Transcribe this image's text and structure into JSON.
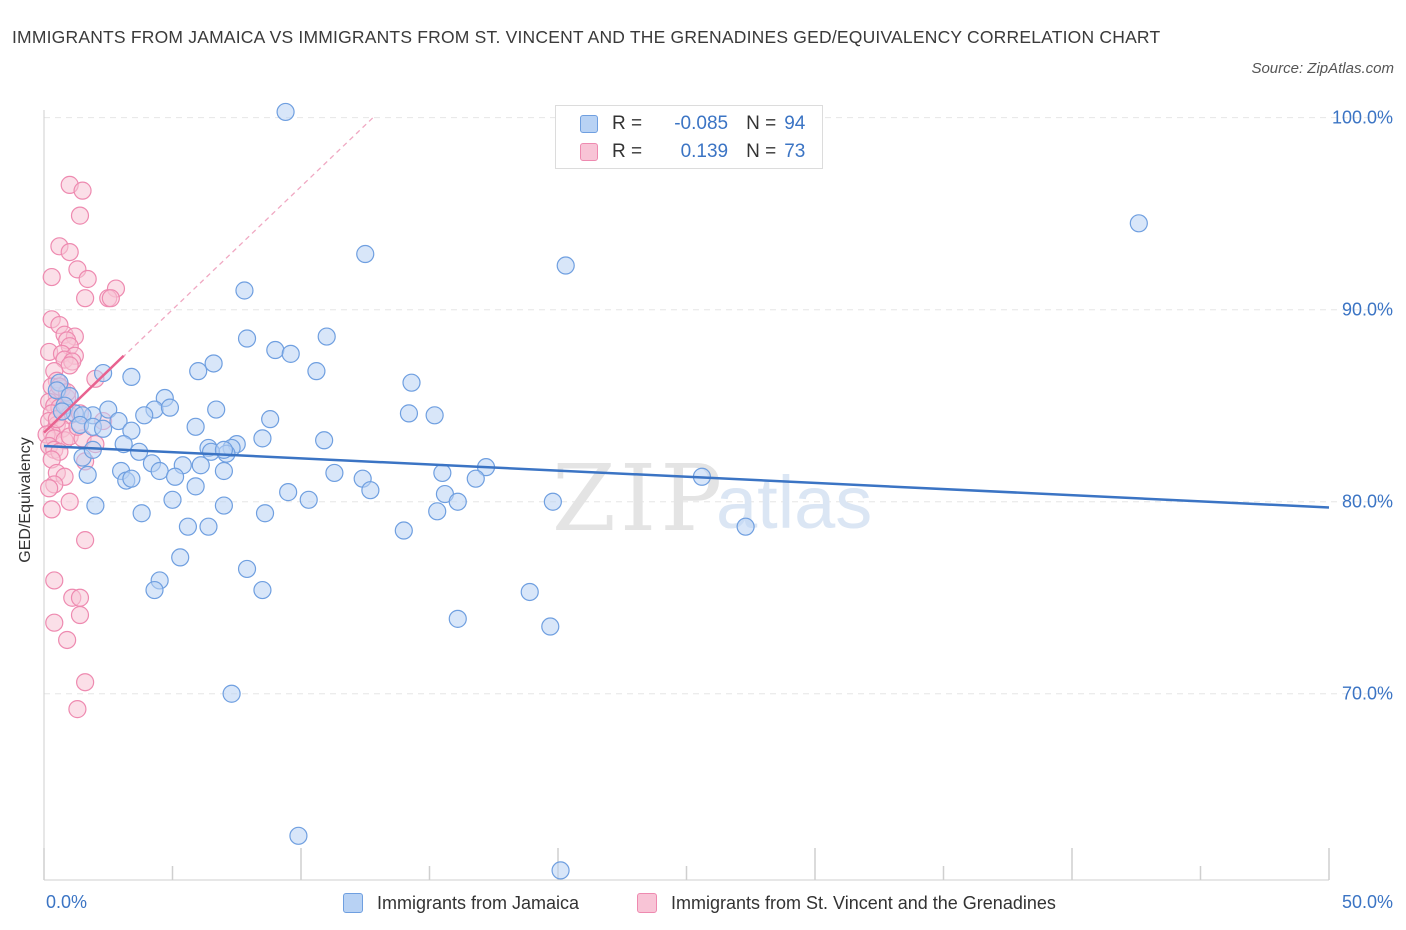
{
  "title": "IMMIGRANTS FROM JAMAICA VS IMMIGRANTS FROM ST. VINCENT AND THE GRENADINES GED/EQUIVALENCY CORRELATION CHART",
  "source": "Source: ZipAtlas.com",
  "watermark": {
    "zip": "ZIP",
    "atlas": "atlas"
  },
  "legend_stats": [
    {
      "r_label": "R =",
      "r_value": "-0.085",
      "n_label": "N =",
      "n_value": "94",
      "fill": "#b8d2f4",
      "stroke": "#6f9fe0"
    },
    {
      "r_label": "R =",
      "r_value": "0.139",
      "n_label": "N =",
      "n_value": "73",
      "fill": "#f8c4d6",
      "stroke": "#ee8ab0"
    }
  ],
  "colors": {
    "blue": "#3b74c4",
    "pink": "#e8628f"
  },
  "chart_data": {
    "type": "scatter",
    "title": "IMMIGRANTS FROM JAMAICA VS IMMIGRANTS FROM ST. VINCENT AND THE GRENADINES GED/EQUIVALENCY CORRELATION CHART",
    "xlabel": "",
    "ylabel": "GED/Equivalency",
    "xlim": [
      0,
      50
    ],
    "ylim": [
      60.3,
      100.4
    ],
    "x_tick_labels": [
      "0.0%",
      "50.0%"
    ],
    "y_ticks": [
      70,
      80,
      90,
      100
    ],
    "y_tick_labels": [
      "70.0%",
      "80.0%",
      "90.0%",
      "100.0%"
    ],
    "grid": true,
    "legend_position": "bottom",
    "series": [
      {
        "name": "Immigrants from Jamaica",
        "color": "#6f9fe0",
        "trend": {
          "x": [
            0,
            50
          ],
          "y": [
            82.9,
            79.7
          ]
        },
        "points": [
          [
            9.4,
            100.3
          ],
          [
            42.6,
            94.5
          ],
          [
            12.5,
            92.9
          ],
          [
            20.3,
            92.3
          ],
          [
            7.8,
            91.0
          ],
          [
            7.9,
            88.5
          ],
          [
            11.0,
            88.6
          ],
          [
            9.0,
            87.9
          ],
          [
            9.6,
            87.7
          ],
          [
            6.6,
            87.2
          ],
          [
            6.0,
            86.8
          ],
          [
            10.6,
            86.8
          ],
          [
            3.4,
            86.5
          ],
          [
            2.3,
            86.7
          ],
          [
            14.3,
            86.2
          ],
          [
            0.6,
            86.2
          ],
          [
            0.5,
            85.8
          ],
          [
            1.0,
            85.5
          ],
          [
            4.7,
            85.4
          ],
          [
            0.8,
            85.0
          ],
          [
            1.2,
            84.6
          ],
          [
            1.9,
            84.5
          ],
          [
            1.5,
            84.5
          ],
          [
            2.5,
            84.8
          ],
          [
            4.3,
            84.8
          ],
          [
            4.9,
            84.9
          ],
          [
            6.7,
            84.8
          ],
          [
            14.2,
            84.6
          ],
          [
            15.2,
            84.5
          ],
          [
            8.8,
            84.3
          ],
          [
            3.9,
            84.5
          ],
          [
            2.9,
            84.2
          ],
          [
            1.4,
            84.0
          ],
          [
            1.9,
            83.9
          ],
          [
            2.3,
            83.8
          ],
          [
            3.4,
            83.7
          ],
          [
            5.9,
            83.9
          ],
          [
            8.5,
            83.3
          ],
          [
            10.9,
            83.2
          ],
          [
            7.5,
            83.0
          ],
          [
            7.3,
            82.8
          ],
          [
            7.1,
            82.5
          ],
          [
            6.4,
            82.8
          ],
          [
            3.1,
            83.0
          ],
          [
            3.7,
            82.6
          ],
          [
            1.5,
            82.3
          ],
          [
            1.9,
            82.7
          ],
          [
            4.2,
            82.0
          ],
          [
            5.4,
            81.9
          ],
          [
            4.5,
            81.6
          ],
          [
            3.0,
            81.6
          ],
          [
            3.2,
            81.1
          ],
          [
            3.4,
            81.2
          ],
          [
            6.1,
            81.9
          ],
          [
            7.0,
            81.6
          ],
          [
            11.3,
            81.5
          ],
          [
            17.2,
            81.8
          ],
          [
            16.8,
            81.2
          ],
          [
            12.4,
            81.2
          ],
          [
            25.6,
            81.3
          ],
          [
            12.7,
            80.6
          ],
          [
            9.5,
            80.5
          ],
          [
            10.3,
            80.1
          ],
          [
            15.6,
            80.4
          ],
          [
            16.1,
            80.0
          ],
          [
            19.8,
            80.0
          ],
          [
            5.1,
            81.3
          ],
          [
            5.9,
            80.8
          ],
          [
            5.0,
            80.1
          ],
          [
            7.0,
            79.8
          ],
          [
            8.6,
            79.4
          ],
          [
            15.3,
            79.5
          ],
          [
            2.0,
            79.8
          ],
          [
            3.8,
            79.4
          ],
          [
            5.6,
            78.7
          ],
          [
            6.4,
            78.7
          ],
          [
            14.0,
            78.5
          ],
          [
            27.3,
            78.7
          ],
          [
            5.3,
            77.1
          ],
          [
            7.9,
            76.5
          ],
          [
            4.5,
            75.9
          ],
          [
            4.3,
            75.4
          ],
          [
            8.5,
            75.4
          ],
          [
            18.9,
            75.3
          ],
          [
            16.1,
            73.9
          ],
          [
            19.7,
            73.5
          ],
          [
            7.3,
            70.0
          ],
          [
            9.9,
            62.6
          ],
          [
            20.1,
            60.8
          ],
          [
            6.5,
            82.6
          ],
          [
            7.0,
            82.7
          ],
          [
            15.5,
            81.5
          ],
          [
            1.7,
            81.4
          ],
          [
            0.7,
            84.7
          ]
        ]
      },
      {
        "name": "Immigrants from St. Vincent and the Grenadines",
        "color": "#ee8ab0",
        "trend": {
          "x": [
            0,
            3.1
          ],
          "y": [
            83.6,
            87.6
          ]
        },
        "extension": {
          "x": [
            0,
            12.8
          ],
          "y": [
            83.6,
            100.0
          ]
        },
        "points": [
          [
            1.0,
            96.5
          ],
          [
            1.5,
            96.2
          ],
          [
            1.4,
            94.9
          ],
          [
            0.6,
            93.3
          ],
          [
            1.0,
            93.0
          ],
          [
            1.3,
            92.1
          ],
          [
            1.7,
            91.6
          ],
          [
            0.3,
            91.7
          ],
          [
            2.8,
            91.1
          ],
          [
            1.6,
            90.6
          ],
          [
            2.5,
            90.6
          ],
          [
            2.6,
            90.6
          ],
          [
            0.3,
            89.5
          ],
          [
            0.6,
            89.2
          ],
          [
            0.8,
            88.7
          ],
          [
            1.2,
            88.6
          ],
          [
            0.9,
            88.4
          ],
          [
            1.0,
            88.1
          ],
          [
            0.2,
            87.8
          ],
          [
            0.7,
            87.7
          ],
          [
            1.2,
            87.6
          ],
          [
            0.8,
            87.4
          ],
          [
            1.1,
            87.3
          ],
          [
            1.0,
            87.1
          ],
          [
            0.4,
            86.8
          ],
          [
            0.5,
            86.3
          ],
          [
            2.0,
            86.4
          ],
          [
            0.3,
            86.0
          ],
          [
            0.7,
            85.9
          ],
          [
            0.5,
            85.5
          ],
          [
            0.9,
            85.4
          ],
          [
            0.2,
            85.2
          ],
          [
            0.4,
            85.0
          ],
          [
            0.6,
            84.9
          ],
          [
            0.8,
            84.8
          ],
          [
            0.3,
            84.6
          ],
          [
            1.0,
            84.5
          ],
          [
            1.4,
            84.6
          ],
          [
            0.2,
            84.2
          ],
          [
            0.5,
            84.0
          ],
          [
            0.7,
            83.8
          ],
          [
            0.3,
            83.6
          ],
          [
            0.1,
            83.5
          ],
          [
            0.4,
            83.3
          ],
          [
            0.8,
            83.2
          ],
          [
            1.0,
            83.4
          ],
          [
            1.5,
            83.3
          ],
          [
            0.2,
            82.9
          ],
          [
            0.4,
            82.7
          ],
          [
            0.6,
            82.6
          ],
          [
            0.3,
            82.2
          ],
          [
            1.6,
            82.1
          ],
          [
            0.5,
            81.5
          ],
          [
            0.8,
            81.3
          ],
          [
            0.4,
            80.9
          ],
          [
            0.2,
            80.7
          ],
          [
            1.0,
            80.0
          ],
          [
            0.3,
            79.6
          ],
          [
            1.6,
            78.0
          ],
          [
            0.4,
            75.9
          ],
          [
            1.1,
            75.0
          ],
          [
            1.4,
            75.0
          ],
          [
            1.4,
            74.1
          ],
          [
            0.4,
            73.7
          ],
          [
            0.9,
            72.8
          ],
          [
            1.6,
            70.6
          ],
          [
            1.3,
            69.2
          ],
          [
            2.0,
            83.0
          ],
          [
            2.3,
            84.2
          ],
          [
            0.6,
            86.0
          ],
          [
            0.9,
            85.7
          ],
          [
            1.3,
            83.9
          ],
          [
            0.5,
            84.3
          ]
        ]
      }
    ]
  }
}
